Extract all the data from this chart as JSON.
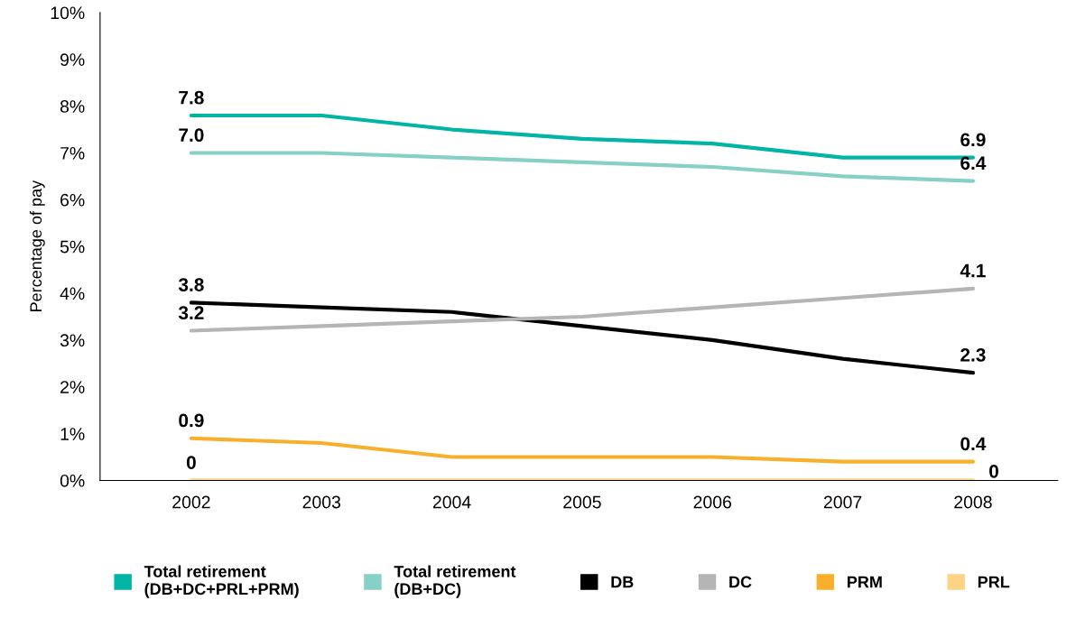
{
  "chart_data": {
    "type": "line",
    "ylabel": "Percentage of pay",
    "categories": [
      "2002",
      "2003",
      "2004",
      "2005",
      "2006",
      "2007",
      "2008"
    ],
    "series": [
      {
        "name": "Total retirement\n(DB+DC+PRL+PRM)",
        "color": "#00b5a5",
        "values": [
          7.8,
          7.8,
          7.5,
          7.3,
          7.2,
          6.9,
          6.9
        ],
        "value_labels": [
          "7.8",
          null,
          null,
          null,
          null,
          null,
          "6.9"
        ]
      },
      {
        "name": "Total retirement\n(DB+DC)",
        "color": "#86d0c6",
        "values": [
          7.0,
          7.0,
          6.9,
          6.8,
          6.7,
          6.5,
          6.4
        ],
        "value_labels": [
          "7.0",
          null,
          null,
          null,
          null,
          null,
          "6.4"
        ]
      },
      {
        "name": "DB",
        "color": "#000000",
        "values": [
          3.8,
          3.7,
          3.6,
          3.3,
          3.0,
          2.6,
          2.3
        ],
        "value_labels": [
          "3.8",
          null,
          null,
          null,
          null,
          null,
          "2.3"
        ]
      },
      {
        "name": "DC",
        "color": "#b5b5b5",
        "values": [
          3.2,
          3.3,
          3.4,
          3.5,
          3.7,
          3.9,
          4.1
        ],
        "value_labels": [
          "3.2",
          null,
          null,
          null,
          null,
          null,
          "4.1"
        ]
      },
      {
        "name": "PRM",
        "color": "#f8b02c",
        "values": [
          0.9,
          0.8,
          0.5,
          0.5,
          0.5,
          0.4,
          0.4
        ],
        "value_labels": [
          "0.9",
          null,
          null,
          null,
          null,
          null,
          "0.4"
        ]
      },
      {
        "name": "PRL",
        "color": "#fcd484",
        "values": [
          0,
          0,
          0,
          0,
          0,
          0,
          0
        ],
        "value_labels": [
          "0",
          null,
          null,
          null,
          null,
          null,
          "0"
        ]
      }
    ],
    "ylim": [
      0,
      10
    ],
    "yticks": [
      {
        "value": 0,
        "label": "0%"
      },
      {
        "value": 1,
        "label": "1%"
      },
      {
        "value": 2,
        "label": "2%"
      },
      {
        "value": 3,
        "label": "3%"
      },
      {
        "value": 4,
        "label": "4%"
      },
      {
        "value": 5,
        "label": "5%"
      },
      {
        "value": 6,
        "label": "6%"
      },
      {
        "value": 7,
        "label": "7%"
      },
      {
        "value": 8,
        "label": "8%"
      },
      {
        "value": 9,
        "label": "9%"
      },
      {
        "value": 10,
        "label": "10%"
      }
    ],
    "grid": false,
    "legend": "bottom",
    "marker": "none",
    "line_style": "solid"
  }
}
